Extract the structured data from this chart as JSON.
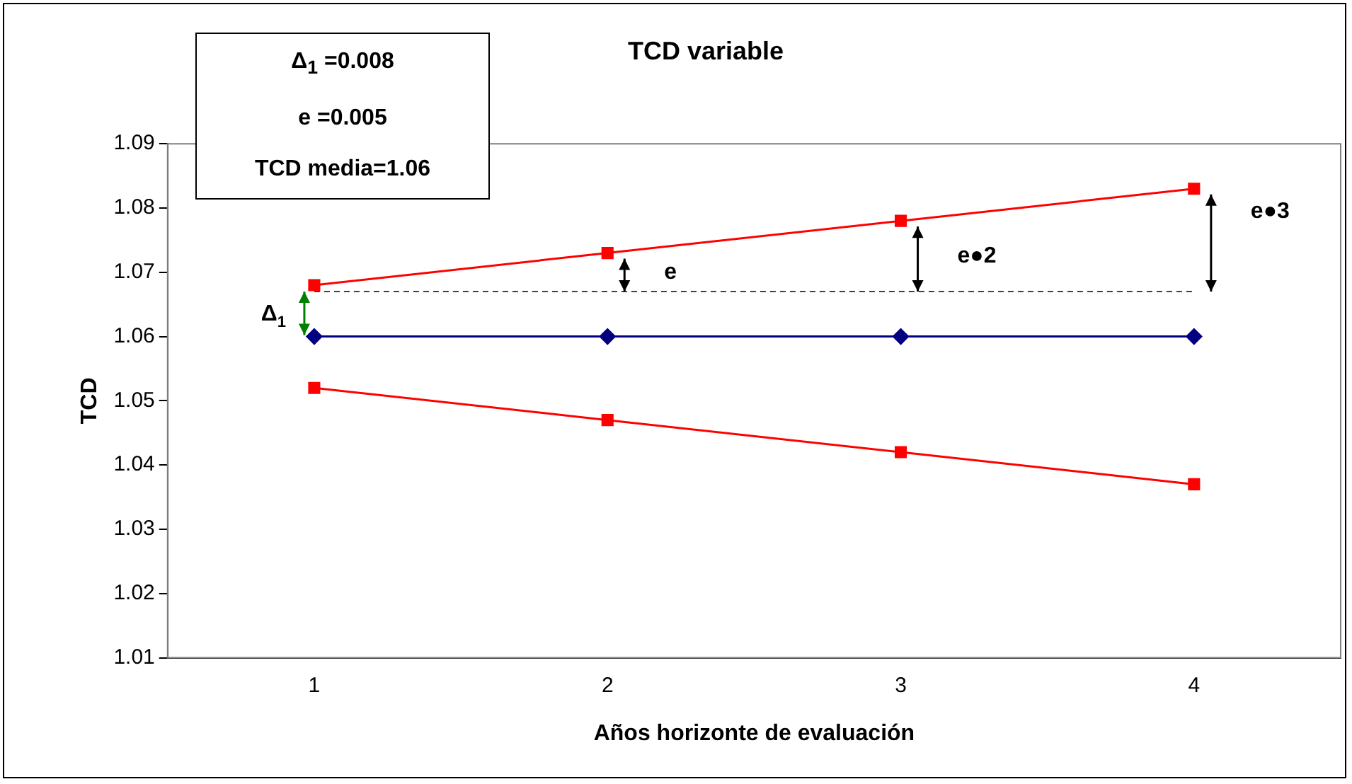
{
  "chart_data": {
    "type": "line",
    "title": "TCD variable",
    "xlabel": "Años horizonte de evaluación",
    "ylabel": "TCD",
    "categories": [
      "1",
      "2",
      "3",
      "4"
    ],
    "series": [
      {
        "color": "#ff0000",
        "marker": "square",
        "values": [
          1.068,
          1.073,
          1.078,
          1.083
        ]
      },
      {
        "color": "#000080",
        "marker": "diamond",
        "values": [
          1.06,
          1.06,
          1.06,
          1.06
        ]
      },
      {
        "color": "#ff0000",
        "marker": "square",
        "values": [
          1.052,
          1.047,
          1.042,
          1.037
        ]
      }
    ],
    "ylim": [
      1.01,
      1.09
    ],
    "yticks": [
      1.01,
      1.02,
      1.03,
      1.04,
      1.05,
      1.06,
      1.07,
      1.08,
      1.09
    ],
    "ref_lines": [
      {
        "axis": "y",
        "value": 1.067,
        "color": "#404040",
        "line_style": "dashed"
      }
    ],
    "annotations": [
      "Δ$_{1}$ =0.008",
      "e  =0.005",
      "TCD media=1.06",
      "Δ$_{1}$",
      "e",
      "e●2",
      "e●3"
    ],
    "grid": false,
    "legend": false,
    "line_style": "solid"
  }
}
